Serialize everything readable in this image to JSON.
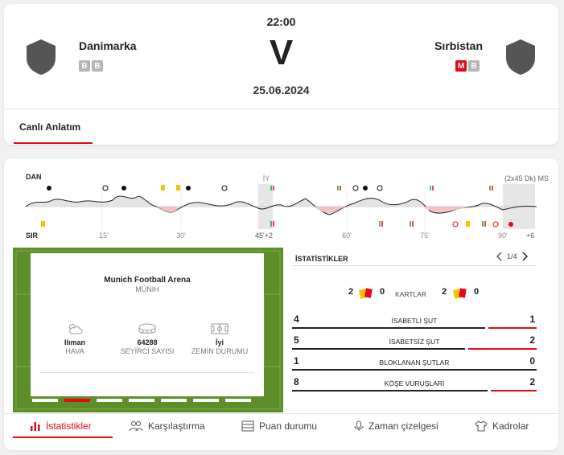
{
  "match": {
    "time": "22:00",
    "vs": "V",
    "date": "25.06.2024",
    "home": {
      "name": "Danimarka",
      "form": [
        "B",
        "B"
      ]
    },
    "away": {
      "name": "Sırbistan",
      "form": [
        "M",
        "B"
      ]
    }
  },
  "tabs": {
    "live_commentary": "Canlı Anlatım"
  },
  "timeline": {
    "home_label": "DAN",
    "away_label": "SIR",
    "half_label": "İY",
    "duration": "(2x45 Dk) MS",
    "ticks": [
      "15'",
      "30'",
      "45'+2",
      "60'",
      "75'",
      "90'",
      "+6"
    ]
  },
  "venue": {
    "name": "Munich Football Arena",
    "city": "MÜNIH",
    "weather_value": "Ilıman",
    "weather_label": "HAVA",
    "attendance_value": "64288",
    "attendance_label": "SEYİRCİ SAYISI",
    "pitch_value": "İyi",
    "pitch_label": "ZEMİN DURUMU"
  },
  "stats": {
    "title": "İSTATİSTİKLER",
    "page": "1/4",
    "cards_label": "KARTLAR",
    "home_yellow": "2",
    "home_red": "0",
    "away_yellow": "2",
    "away_red": "0",
    "rows": [
      {
        "name": "İSABETLİ ŞUT",
        "home": "4",
        "away": "1"
      },
      {
        "name": "İSABETSİZ ŞUT",
        "home": "5",
        "away": "2"
      },
      {
        "name": "BLOKLANAN ŞUTLAR",
        "home": "1",
        "away": "0"
      },
      {
        "name": "KÖŞE VURUŞLARI",
        "home": "8",
        "away": "2"
      }
    ]
  },
  "bottom_nav": [
    {
      "label": "İstatistikler",
      "icon": "bar-chart-icon"
    },
    {
      "label": "Karşılaştırma",
      "icon": "users-icon"
    },
    {
      "label": "Puan durumu",
      "icon": "table-icon"
    },
    {
      "label": "Zaman çizelgesi",
      "icon": "microphone-icon"
    },
    {
      "label": "Kadrolar",
      "icon": "shirt-icon"
    }
  ],
  "colors": {
    "accent": "#e20a17",
    "form_win": "#b5b5b5",
    "pitch": "#5d8e2a",
    "yellow_card": "#f5c400"
  }
}
